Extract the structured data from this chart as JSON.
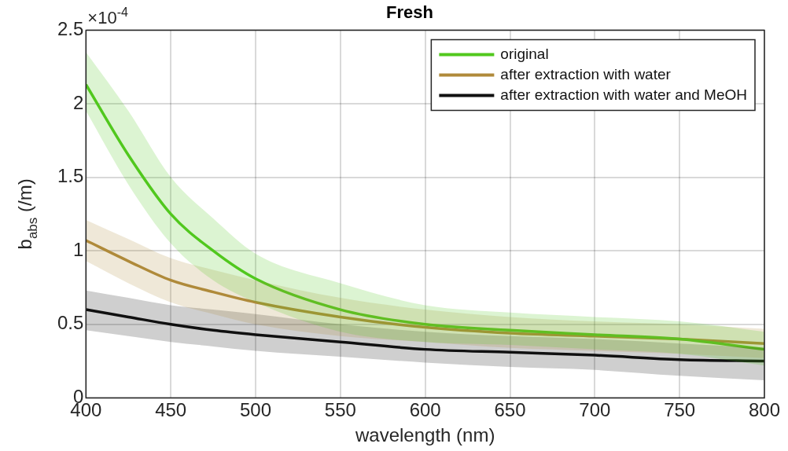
{
  "chart_data": {
    "type": "line",
    "title": "Fresh",
    "xlabel": "wavelength (nm)",
    "ylabel": "b$_{abs}$ (/m)",
    "annotations": [
      "×10$^{-4}$"
    ],
    "x": [
      400,
      425,
      450,
      475,
      500,
      550,
      600,
      650,
      700,
      750,
      800
    ],
    "series": [
      {
        "name": "original",
        "color": "#52c81e",
        "values": [
          2.13,
          1.65,
          1.25,
          1.0,
          0.81,
          0.6,
          0.5,
          0.46,
          0.43,
          0.4,
          0.33
        ],
        "lower": [
          1.95,
          1.45,
          1.05,
          0.8,
          0.65,
          0.45,
          0.38,
          0.36,
          0.33,
          0.3,
          0.22
        ],
        "upper": [
          2.35,
          1.95,
          1.5,
          1.22,
          0.98,
          0.78,
          0.63,
          0.58,
          0.55,
          0.52,
          0.45
        ]
      },
      {
        "name": "after extraction with water",
        "color": "#b08a3a",
        "values": [
          1.07,
          0.93,
          0.8,
          0.72,
          0.65,
          0.55,
          0.48,
          0.44,
          0.42,
          0.4,
          0.37
        ],
        "lower": [
          0.93,
          0.78,
          0.65,
          0.57,
          0.5,
          0.42,
          0.38,
          0.34,
          0.32,
          0.3,
          0.27
        ],
        "upper": [
          1.21,
          1.08,
          0.95,
          0.87,
          0.8,
          0.68,
          0.6,
          0.55,
          0.52,
          0.5,
          0.47
        ]
      },
      {
        "name": "after extraction with water and MeOH",
        "color": "#111111",
        "values": [
          0.6,
          0.55,
          0.5,
          0.46,
          0.43,
          0.38,
          0.33,
          0.31,
          0.29,
          0.26,
          0.25
        ],
        "lower": [
          0.46,
          0.42,
          0.38,
          0.35,
          0.32,
          0.28,
          0.24,
          0.21,
          0.19,
          0.15,
          0.12
        ],
        "upper": [
          0.73,
          0.68,
          0.63,
          0.6,
          0.57,
          0.5,
          0.45,
          0.42,
          0.4,
          0.37,
          0.34
        ]
      }
    ],
    "xlim": [
      400,
      800
    ],
    "xticks": [
      400,
      450,
      500,
      550,
      600,
      650,
      700,
      750,
      800
    ],
    "ylim": [
      0,
      2.5
    ],
    "yticks": [
      0,
      0.5,
      1,
      1.5,
      2,
      2.5
    ],
    "grid": true,
    "legend": "top right",
    "marker": "none",
    "line_style": "solid"
  }
}
